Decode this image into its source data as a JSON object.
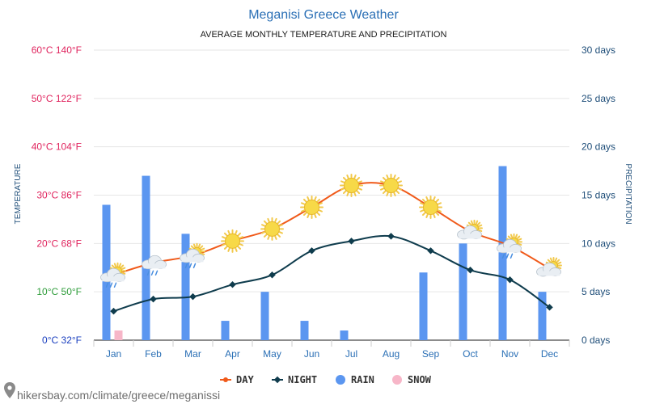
{
  "chart_data": {
    "type": "bar+line",
    "title": "Meganisi Greece Weather",
    "subtitle": "AVERAGE MONTHLY TEMPERATURE AND PRECIPITATION",
    "categories": [
      "Jan",
      "Feb",
      "Mar",
      "Apr",
      "May",
      "Jun",
      "Jul",
      "Aug",
      "Sep",
      "Oct",
      "Nov",
      "Dec"
    ],
    "y_left": {
      "label": "TEMPERATURE",
      "range": [
        0,
        60
      ],
      "ticks": [
        {
          "value": 0,
          "label": "0°C 32°F",
          "color": "#1a3fbf"
        },
        {
          "value": 10,
          "label": "10°C 50°F",
          "color": "#2e9c3a"
        },
        {
          "value": 20,
          "label": "20°C 68°F",
          "color": "#e0245e"
        },
        {
          "value": 30,
          "label": "30°C 86°F",
          "color": "#e0245e"
        },
        {
          "value": 40,
          "label": "40°C 104°F",
          "color": "#e0245e"
        },
        {
          "value": 50,
          "label": "50°C 122°F",
          "color": "#e0245e"
        },
        {
          "value": 60,
          "label": "60°C 140°F",
          "color": "#e0245e"
        }
      ]
    },
    "y_right": {
      "label": "PRECIPITATION",
      "range": [
        0,
        30
      ],
      "ticks": [
        {
          "value": 0,
          "label": "0 days"
        },
        {
          "value": 5,
          "label": "5 days"
        },
        {
          "value": 10,
          "label": "10 days"
        },
        {
          "value": 15,
          "label": "15 days"
        },
        {
          "value": 20,
          "label": "20 days"
        },
        {
          "value": 25,
          "label": "25 days"
        },
        {
          "value": 30,
          "label": "30 days"
        }
      ]
    },
    "series": [
      {
        "name": "DAY",
        "kind": "line",
        "axis": "left",
        "color": "#f05a1a",
        "values": [
          13.5,
          16,
          17.5,
          20.5,
          23,
          27.5,
          32,
          32,
          27.5,
          22.5,
          19.5,
          14.8
        ]
      },
      {
        "name": "NIGHT",
        "kind": "line",
        "axis": "left",
        "color": "#0f3c4d",
        "values": [
          6,
          8.5,
          9,
          11.5,
          13.5,
          18.5,
          20.5,
          21.5,
          18.5,
          14.5,
          12.5,
          6.8
        ]
      },
      {
        "name": "RAIN",
        "kind": "bar",
        "axis": "right",
        "color": "#5b96f0",
        "values": [
          14,
          17,
          11,
          2,
          5,
          2,
          1,
          0,
          7,
          10,
          18,
          5
        ]
      },
      {
        "name": "SNOW",
        "kind": "bar",
        "axis": "right",
        "color": "#f7b6c8",
        "values": [
          1,
          0,
          0,
          0,
          0,
          0,
          0,
          0,
          0,
          0,
          0,
          0
        ]
      }
    ],
    "weather_icons": [
      "rain-cloud-sun-icon",
      "rain-cloud-icon",
      "rain-cloud-sun-icon",
      "sun-icon",
      "sun-icon",
      "sun-icon",
      "sun-icon",
      "sun-icon",
      "sun-icon",
      "cloud-sun-icon",
      "rain-cloud-sun-icon",
      "cloud-sun-icon"
    ],
    "legend_position": "bottom",
    "grid": true
  },
  "credit": "hikersbay.com/climate/greece/meganissi",
  "colors": {
    "title": "#2a6fb5",
    "right_axis": "#1f4e79",
    "month": "#2a6fb5",
    "grid": "#e6e6e6",
    "axis": "#1a1a1a"
  }
}
